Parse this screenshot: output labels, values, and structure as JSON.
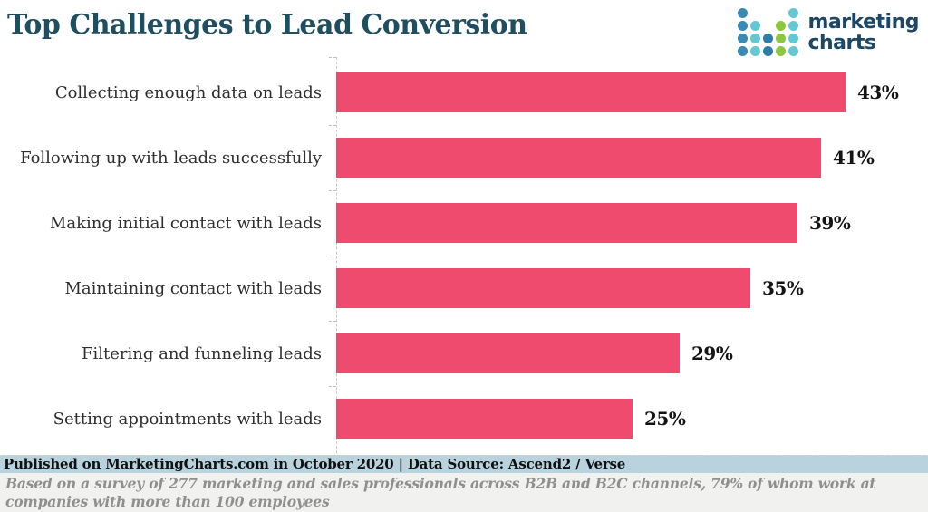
{
  "title": "Top Challenges to Lead Conversion",
  "logo": {
    "text_line1": "marketing",
    "text_line2": "charts",
    "dot_grid": [
      [
        "b",
        "",
        "",
        "",
        "t"
      ],
      [
        "b",
        "t",
        "",
        "g",
        "t"
      ],
      [
        "b",
        "t",
        "d",
        "g",
        "t"
      ],
      [
        "b",
        "t",
        "d",
        "g",
        "t"
      ]
    ],
    "dot_colors": {
      "b": "#3a8ab4",
      "t": "#64c8d2",
      "d": "#2e7da7",
      "g": "#8cc63f"
    }
  },
  "chart_data": {
    "type": "bar",
    "orientation": "horizontal",
    "title": "Top Challenges to Lead Conversion",
    "categories": [
      "Collecting enough data on leads",
      "Following up with leads successfully",
      "Making initial contact with leads",
      "Maintaining contact with leads",
      "Filtering and funneling leads",
      "Setting appointments with leads"
    ],
    "values": [
      43,
      41,
      39,
      35,
      29,
      25
    ],
    "value_labels": [
      "43%",
      "41%",
      "39%",
      "35%",
      "29%",
      "25%"
    ],
    "xlabel": "",
    "ylabel": "",
    "xlim": [
      0,
      50
    ],
    "grid": "dashed category axis with tick marks, no value gridlines",
    "legend_position": "none",
    "bar_color": "#ee4b6e"
  },
  "footer": {
    "published": "Published on MarketingCharts.com in October 2020 | Data Source: Ascend2 / Verse",
    "note": "Based on a survey of 277 marketing and sales professionals across B2B and B2C channels, 79% of whom work at companies with more than 100 employees"
  },
  "colors": {
    "title_text": "#1e4e60",
    "bar": "#ee4b6e",
    "category_text": "#2e2e2e",
    "value_text": "#141414",
    "published_bg": "#b9d3de",
    "published_text": "#101010",
    "note_bg": "#f1f1ef",
    "note_text": "#8f8f8f",
    "axis_line": "#c9c9c9",
    "logo_text": "#1d4765"
  }
}
